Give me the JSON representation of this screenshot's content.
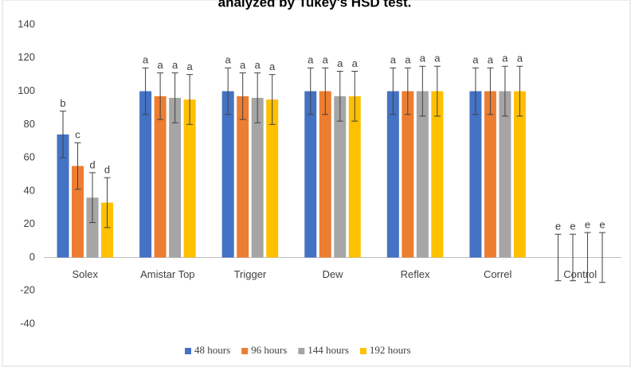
{
  "chart_data": {
    "type": "bar",
    "title": "analyzed by Tukey's HSD test.",
    "categories": [
      "Solex",
      "Amistar Top",
      "Trigger",
      "Dew",
      "Reflex",
      "Correl",
      "Control"
    ],
    "series": [
      {
        "name": "48 hours",
        "color": "#4472c4",
        "values": [
          74,
          100,
          100,
          100,
          100,
          100,
          0
        ],
        "errors": [
          14,
          14,
          14,
          14,
          14,
          14,
          14
        ],
        "letters": [
          "b",
          "a",
          "a",
          "a",
          "a",
          "a",
          "e"
        ]
      },
      {
        "name": "96 hours",
        "color": "#ed7d31",
        "values": [
          55,
          97,
          97,
          100,
          100,
          100,
          0
        ],
        "errors": [
          14,
          14,
          14,
          14,
          14,
          14,
          14
        ],
        "letters": [
          "c",
          "a",
          "a",
          "a",
          "a",
          "a",
          "e"
        ]
      },
      {
        "name": "144 hours",
        "color": "#a5a5a5",
        "values": [
          36,
          96,
          96,
          97,
          100,
          100,
          0
        ],
        "errors": [
          15,
          15,
          15,
          15,
          15,
          15,
          15
        ],
        "letters": [
          "d",
          "a",
          "a",
          "a",
          "a",
          "a",
          "e"
        ]
      },
      {
        "name": "192 hours",
        "color": "#ffc000",
        "values": [
          33,
          95,
          95,
          97,
          100,
          100,
          0
        ],
        "errors": [
          15,
          15,
          15,
          15,
          15,
          15,
          15
        ],
        "letters": [
          "d",
          "a",
          "a",
          "a",
          "a",
          "a",
          "e"
        ]
      }
    ],
    "ylim": [
      -40,
      140
    ],
    "yticks": [
      -40,
      -20,
      0,
      20,
      40,
      60,
      80,
      100,
      120,
      140
    ],
    "legend": "bottom"
  }
}
